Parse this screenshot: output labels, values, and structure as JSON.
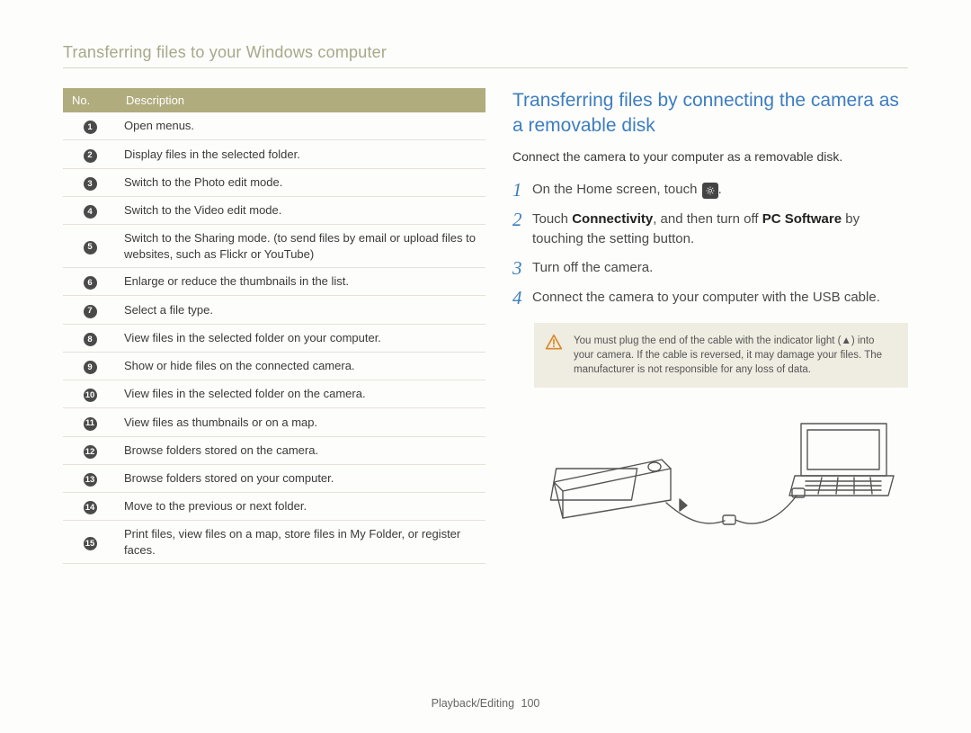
{
  "page_title": "Transferring files to your Windows computer",
  "table": {
    "header_no": "No.",
    "header_desc": "Description",
    "rows": [
      {
        "n": "1",
        "d": "Open menus."
      },
      {
        "n": "2",
        "d": "Display files in the selected folder."
      },
      {
        "n": "3",
        "d": "Switch to the Photo edit mode."
      },
      {
        "n": "4",
        "d": "Switch to the Video edit mode."
      },
      {
        "n": "5",
        "d": "Switch to the Sharing mode. (to send files by email or upload files to websites, such as Flickr or YouTube)"
      },
      {
        "n": "6",
        "d": "Enlarge or reduce the thumbnails in the list."
      },
      {
        "n": "7",
        "d": "Select a file type."
      },
      {
        "n": "8",
        "d": "View files in the selected folder on your computer."
      },
      {
        "n": "9",
        "d": "Show or hide files on the connected camera."
      },
      {
        "n": "10",
        "d": "View files in the selected folder on the camera."
      },
      {
        "n": "11",
        "d": "View files as thumbnails or on a map."
      },
      {
        "n": "12",
        "d": "Browse folders stored on the camera."
      },
      {
        "n": "13",
        "d": "Browse folders stored on your computer."
      },
      {
        "n": "14",
        "d": "Move to the previous or next folder."
      },
      {
        "n": "15",
        "d": "Print files, view files on a map, store files in My Folder, or register faces."
      }
    ]
  },
  "section_heading": "Transferring files by connecting the camera as a removable disk",
  "section_sub": "Connect the camera to your computer as a removable disk.",
  "steps": [
    {
      "n": "1",
      "pre": "On the Home screen, touch ",
      "icon": true,
      "post": "."
    },
    {
      "n": "2",
      "pre": "Touch ",
      "b1": "Connectivity",
      "mid": ", and then turn off ",
      "b2": "PC Software",
      "post": " by touching the setting button."
    },
    {
      "n": "3",
      "pre": "Turn off the camera."
    },
    {
      "n": "4",
      "pre": "Connect the camera to your computer with the USB cable."
    }
  ],
  "warning_text": "You must plug the end of the cable with the indicator light (▲) into your camera. If the cable is reversed, it may damage your files. The manufacturer is not responsible for any loss of data.",
  "footer_section": "Playback/Editing",
  "footer_page": "100",
  "colors": {
    "accent_olive": "#b0ac7d",
    "accent_blue": "#3d7dbf",
    "divider": "#e5e3d6",
    "warn_bg": "#efece1",
    "warn_stroke": "#d88a2a"
  }
}
